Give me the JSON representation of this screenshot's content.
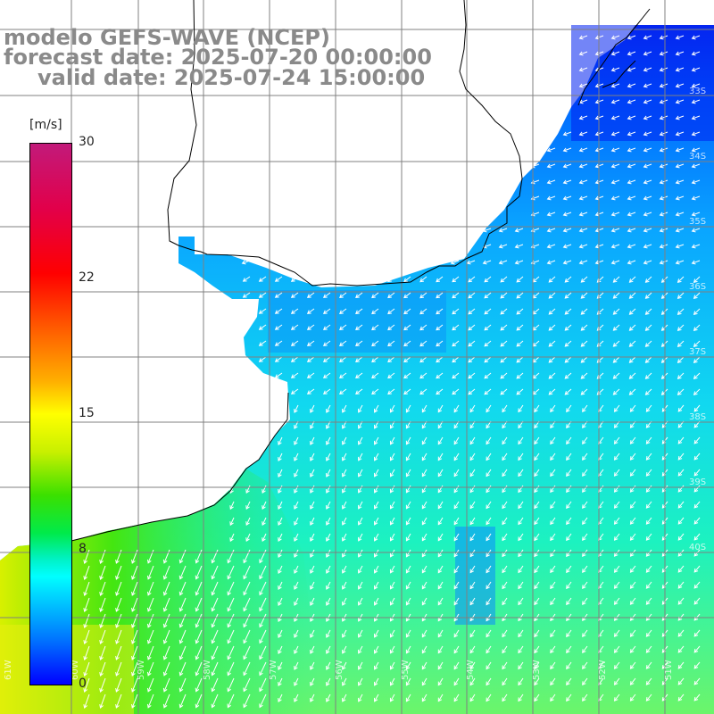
{
  "title": {
    "line1": "modelo GEFS-WAVE (NCEP)",
    "line2": "forecast date: 2025-07-20 00:00:00",
    "line3": "valid date: 2025-07-24 15:00:00"
  },
  "colorbar": {
    "unit": "[m/s]",
    "ticks": [
      "30",
      "22",
      "15",
      "8",
      "0"
    ]
  },
  "longitude_labels": [
    "61W",
    "60W",
    "59W",
    "58W",
    "57W",
    "56W",
    "55W",
    "54W",
    "53W",
    "52W",
    "51W"
  ],
  "latitude_labels": [
    "33S",
    "34S",
    "35S",
    "36S",
    "37S",
    "38S",
    "39S",
    "40S"
  ],
  "colors": {
    "title_text": "#8a8a8a",
    "land": "#ffffff",
    "grid": "#808080",
    "coastline": "#000000",
    "wind_arrow": "#ffffff"
  }
}
